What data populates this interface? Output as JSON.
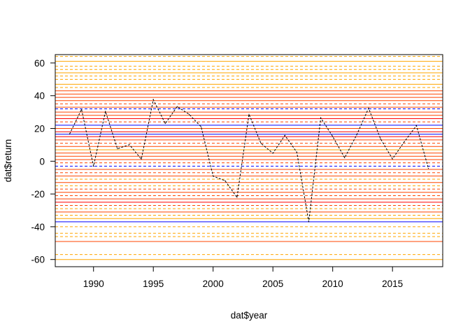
{
  "chart_data": {
    "type": "line",
    "title": "",
    "xlabel": "dat$year",
    "ylabel": "dat$return",
    "xlim": [
      1986.8,
      2019.2
    ],
    "ylim": [
      -64.4,
      65.1
    ],
    "grid": false,
    "x_ticks": [
      1990,
      1995,
      2000,
      2005,
      2010,
      2015
    ],
    "y_ticks": [
      -60,
      -40,
      -20,
      0,
      20,
      40,
      60
    ],
    "series": [
      {
        "line_style": "dashed",
        "color": "#000000",
        "x": [
          1988,
          1989,
          1990,
          1991,
          1992,
          1993,
          1994,
          1995,
          1996,
          1997,
          1998,
          1999,
          2000,
          2001,
          2002,
          2003,
          2004,
          2005,
          2006,
          2007,
          2008,
          2009,
          2010,
          2011,
          2012,
          2013,
          2014,
          2015,
          2016,
          2017,
          2018
        ],
        "y": [
          16.6,
          31.7,
          -3.1,
          30.5,
          7.6,
          10.1,
          1.3,
          37.6,
          23.0,
          33.4,
          28.6,
          21.0,
          -9.1,
          -11.9,
          -22.1,
          28.7,
          10.9,
          4.9,
          15.8,
          5.5,
          -37.0,
          26.5,
          15.1,
          2.1,
          16.0,
          32.4,
          13.7,
          1.4,
          12.0,
          21.8,
          -4.4
        ]
      }
    ],
    "reference_lines": {
      "note_colors": [
        "#ffa500",
        "#ff4500",
        "#ff0000",
        "#0000ff"
      ],
      "levels": [
        {
          "y": 64,
          "color": "#ffa500",
          "dash": true
        },
        {
          "y": 61,
          "color": "#ffa500",
          "dash": false
        },
        {
          "y": 58,
          "color": "#ffa500",
          "dash": true
        },
        {
          "y": 56,
          "color": "#ffa500",
          "dash": true
        },
        {
          "y": 54,
          "color": "#ffa500",
          "dash": false
        },
        {
          "y": 52,
          "color": "#ffa500",
          "dash": true
        },
        {
          "y": 50,
          "color": "#ffa500",
          "dash": true
        },
        {
          "y": 47,
          "color": "#ffa500",
          "dash": false
        },
        {
          "y": 45,
          "color": "#ffa500",
          "dash": true
        },
        {
          "y": 43,
          "color": "#ff4500",
          "dash": false
        },
        {
          "y": 41,
          "color": "#ff4500",
          "dash": false
        },
        {
          "y": 39,
          "color": "#ff4500",
          "dash": false
        },
        {
          "y": 37,
          "color": "#ff4500",
          "dash": false
        },
        {
          "y": 35,
          "color": "#ff4500",
          "dash": true
        },
        {
          "y": 33,
          "color": "#ff4500",
          "dash": false
        },
        {
          "y": 32,
          "color": "#0000ff",
          "dash": true
        },
        {
          "y": 30,
          "color": "#ff4500",
          "dash": false
        },
        {
          "y": 28,
          "color": "#ff4500",
          "dash": false
        },
        {
          "y": 26,
          "color": "#ff0000",
          "dash": false
        },
        {
          "y": 24,
          "color": "#ff4500",
          "dash": true
        },
        {
          "y": 22,
          "color": "#0000ff",
          "dash": false
        },
        {
          "y": 20,
          "color": "#ff4500",
          "dash": false
        },
        {
          "y": 18,
          "color": "#ff0000",
          "dash": false
        },
        {
          "y": 16.5,
          "color": "#0000ff",
          "dash": false
        },
        {
          "y": 15,
          "color": "#ff0000",
          "dash": false
        },
        {
          "y": 13,
          "color": "#ff4500",
          "dash": false
        },
        {
          "y": 11,
          "color": "#ff4500",
          "dash": true
        },
        {
          "y": 9,
          "color": "#ff4500",
          "dash": false
        },
        {
          "y": 7,
          "color": "#ffa500",
          "dash": false
        },
        {
          "y": 5,
          "color": "#ff4500",
          "dash": false
        },
        {
          "y": 3,
          "color": "#ff4500",
          "dash": false
        },
        {
          "y": 1,
          "color": "#ff4500",
          "dash": false
        },
        {
          "y": -1,
          "color": "#ff4500",
          "dash": true
        },
        {
          "y": -3,
          "color": "#0000ff",
          "dash": true
        },
        {
          "y": -5,
          "color": "#ff4500",
          "dash": false
        },
        {
          "y": -7,
          "color": "#ff4500",
          "dash": true
        },
        {
          "y": -9,
          "color": "#ff4500",
          "dash": false
        },
        {
          "y": -11,
          "color": "#ffa500",
          "dash": true
        },
        {
          "y": -13,
          "color": "#ff4500",
          "dash": false
        },
        {
          "y": -15,
          "color": "#ffa500",
          "dash": true
        },
        {
          "y": -17,
          "color": "#ff4500",
          "dash": true
        },
        {
          "y": -19,
          "color": "#ff4500",
          "dash": false
        },
        {
          "y": -21,
          "color": "#ff4500",
          "dash": true
        },
        {
          "y": -23,
          "color": "#ff4500",
          "dash": false
        },
        {
          "y": -25,
          "color": "#ff0000",
          "dash": false
        },
        {
          "y": -27,
          "color": "#ff4500",
          "dash": true
        },
        {
          "y": -29,
          "color": "#ffa500",
          "dash": true
        },
        {
          "y": -31,
          "color": "#ff4500",
          "dash": false
        },
        {
          "y": -33,
          "color": "#ffa500",
          "dash": true
        },
        {
          "y": -35,
          "color": "#ffa500",
          "dash": false
        },
        {
          "y": -37,
          "color": "#0000ff",
          "dash": false
        },
        {
          "y": -40,
          "color": "#ffa500",
          "dash": true
        },
        {
          "y": -44,
          "color": "#ffa500",
          "dash": true
        },
        {
          "y": -46,
          "color": "#ffa500",
          "dash": true
        },
        {
          "y": -49,
          "color": "#ff4500",
          "dash": false
        },
        {
          "y": -57,
          "color": "#ffa500",
          "dash": true
        },
        {
          "y": -60,
          "color": "#ffa500",
          "dash": false
        }
      ]
    }
  }
}
